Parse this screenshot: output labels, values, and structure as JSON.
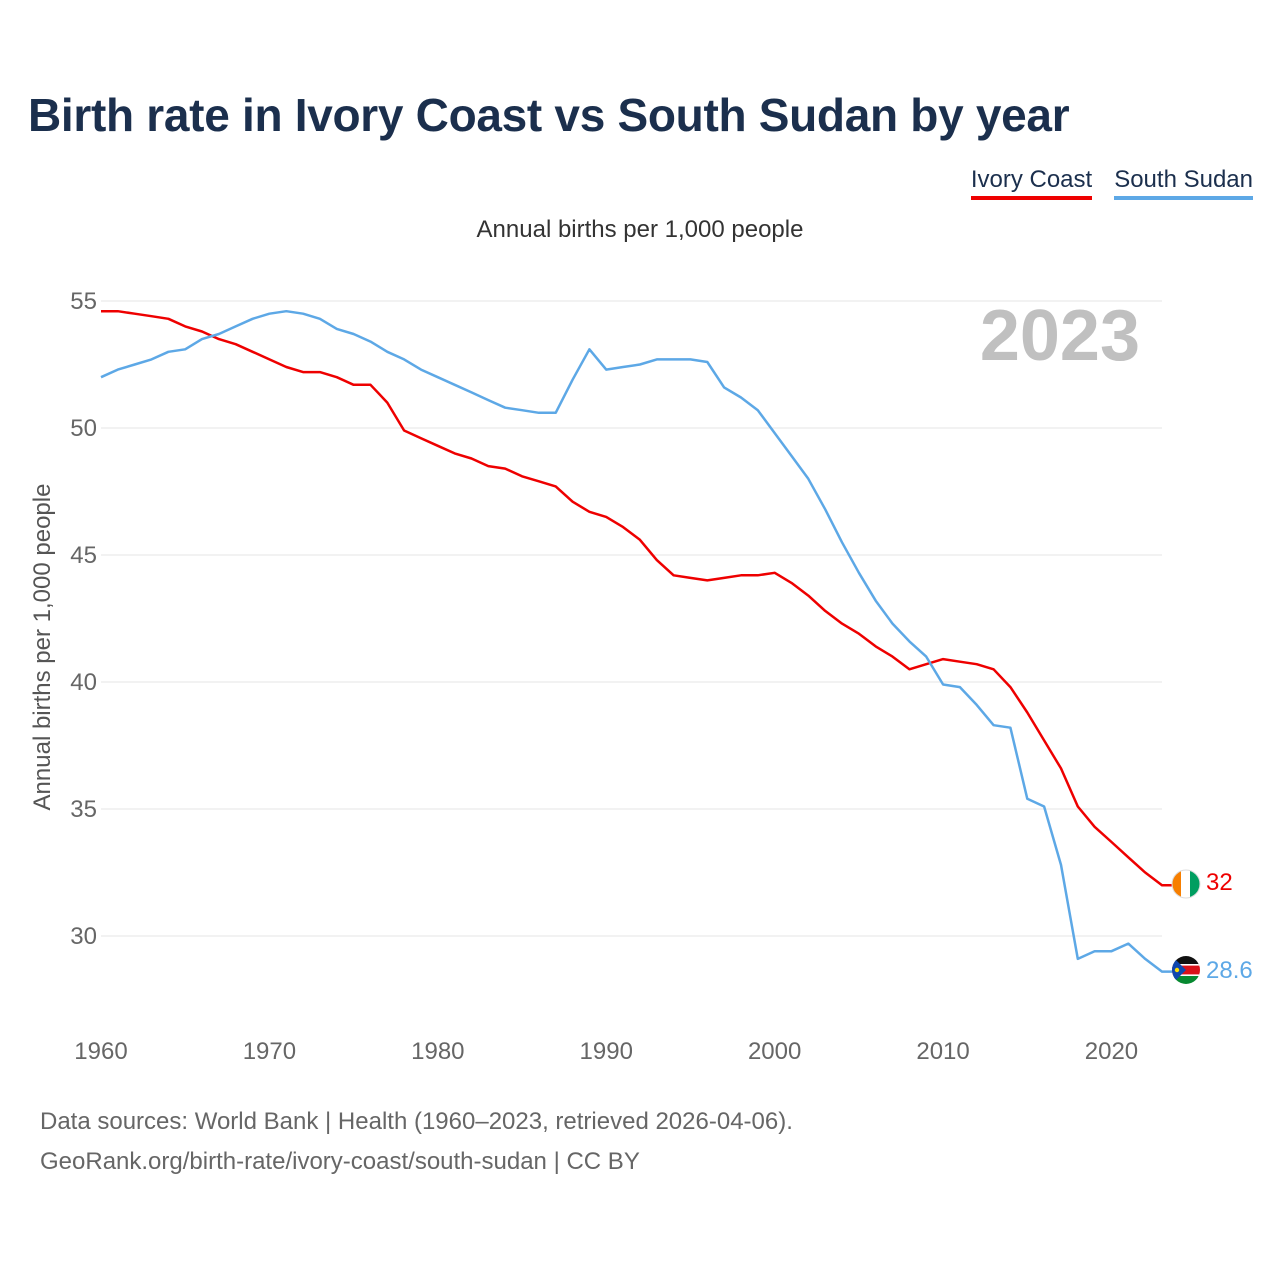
{
  "header": {
    "title": "Birth rate in Ivory Coast vs South Sudan by year",
    "subtitle": "Annual births per 1,000 people"
  },
  "legend": [
    {
      "label": "Ivory Coast",
      "color": "#ee0000"
    },
    {
      "label": "South Sudan",
      "color": "#5da8e6"
    }
  ],
  "footer": {
    "line1": "Data sources: World Bank | Health (1960–2023, retrieved 2026-04-06).",
    "line2": "GeoRank.org/birth-rate/ivory-coast/south-sudan | CC BY"
  },
  "chart_data": {
    "type": "line",
    "title": "Birth rate in Ivory Coast vs South Sudan by year",
    "xlabel": "",
    "ylabel": "Annual births per 1,000 people",
    "year_label": "2023",
    "xlim": [
      1960,
      2023
    ],
    "ylim": [
      27,
      56
    ],
    "x_ticks": [
      1960,
      1970,
      1980,
      1990,
      2000,
      2010,
      2020
    ],
    "y_ticks": [
      30,
      35,
      40,
      45,
      50,
      55
    ],
    "grid": true,
    "legend_position": "top-right",
    "x": [
      1960,
      1961,
      1962,
      1963,
      1964,
      1965,
      1966,
      1967,
      1968,
      1969,
      1970,
      1971,
      1972,
      1973,
      1974,
      1975,
      1976,
      1977,
      1978,
      1979,
      1980,
      1981,
      1982,
      1983,
      1984,
      1985,
      1986,
      1987,
      1988,
      1989,
      1990,
      1991,
      1992,
      1993,
      1994,
      1995,
      1996,
      1997,
      1998,
      1999,
      2000,
      2001,
      2002,
      2003,
      2004,
      2005,
      2006,
      2007,
      2008,
      2009,
      2010,
      2011,
      2012,
      2013,
      2014,
      2015,
      2016,
      2017,
      2018,
      2019,
      2020,
      2021,
      2022,
      2023
    ],
    "series": [
      {
        "name": "Ivory Coast",
        "color": "#ee0000",
        "end_label": "32",
        "values": [
          54.6,
          54.6,
          54.5,
          54.4,
          54.3,
          54.0,
          53.8,
          53.5,
          53.3,
          53.0,
          52.7,
          52.4,
          52.2,
          52.2,
          52.0,
          51.7,
          51.7,
          51.0,
          49.9,
          49.6,
          49.3,
          49.0,
          48.8,
          48.5,
          48.4,
          48.1,
          47.9,
          47.7,
          47.1,
          46.7,
          46.5,
          46.1,
          45.6,
          44.8,
          44.2,
          44.1,
          44.0,
          44.1,
          44.2,
          44.2,
          44.3,
          43.9,
          43.4,
          42.8,
          42.3,
          41.9,
          41.4,
          41.0,
          40.5,
          40.7,
          40.9,
          40.8,
          40.7,
          40.5,
          39.8,
          38.8,
          37.7,
          36.6,
          35.1,
          34.3,
          33.7,
          33.1,
          32.5,
          32.0
        ]
      },
      {
        "name": "South Sudan",
        "color": "#5da8e6",
        "end_label": "28.6",
        "values": [
          52.0,
          52.3,
          52.5,
          52.7,
          53.0,
          53.1,
          53.5,
          53.7,
          54.0,
          54.3,
          54.5,
          54.6,
          54.5,
          54.3,
          53.9,
          53.7,
          53.4,
          53.0,
          52.7,
          52.3,
          52.0,
          51.7,
          51.4,
          51.1,
          50.8,
          50.7,
          50.6,
          50.6,
          51.9,
          53.1,
          52.3,
          52.4,
          52.5,
          52.7,
          52.7,
          52.7,
          52.6,
          51.6,
          51.2,
          50.7,
          49.8,
          48.9,
          48.0,
          46.8,
          45.5,
          44.3,
          43.2,
          42.3,
          41.6,
          41.0,
          39.9,
          39.8,
          39.1,
          38.3,
          38.2,
          35.4,
          35.1,
          32.8,
          29.1,
          29.4,
          29.4,
          29.7,
          29.1,
          28.6
        ]
      }
    ]
  }
}
